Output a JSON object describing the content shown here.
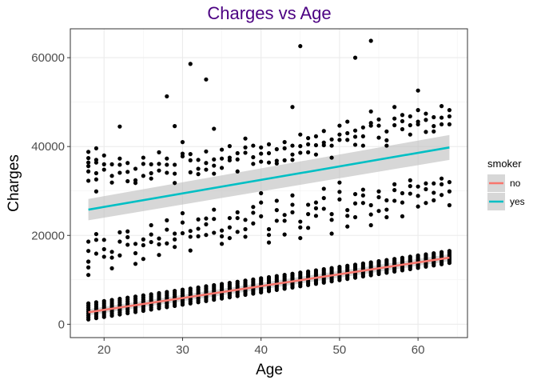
{
  "chart_data": {
    "type": "scatter",
    "title": "Charges vs Age",
    "xlabel": "Age",
    "ylabel": "Charges",
    "xlim": [
      15.7,
      66.3
    ],
    "ylim": [
      -3000,
      66500
    ],
    "x_ticks": [
      20,
      30,
      40,
      50,
      60
    ],
    "y_ticks": [
      0,
      20000,
      40000,
      60000
    ],
    "x_tick_labels": [
      "20",
      "30",
      "40",
      "50",
      "60"
    ],
    "y_tick_labels": [
      "0",
      "20000",
      "40000",
      "60000"
    ],
    "grid": true,
    "legend": {
      "title": "smoker",
      "position": "right",
      "entries": [
        {
          "label": "no",
          "color": "#F8766D"
        },
        {
          "label": "yes",
          "color": "#00BFC4"
        }
      ]
    },
    "point_color": "#000000",
    "band_color": "#bdbdbd",
    "fit_lines": [
      {
        "name": "no",
        "color": "#F8766D",
        "x": [
          18,
          64
        ],
        "y": [
          2700,
          15000
        ],
        "ci_halfwidth": [
          700,
          800
        ]
      },
      {
        "name": "yes",
        "color": "#00BFC4",
        "x": [
          18,
          64
        ],
        "y": [
          25800,
          39800
        ],
        "ci_halfwidth": [
          2400,
          2800
        ]
      }
    ],
    "points": {
      "nonsmoker_low_band": {
        "age_range": [
          18,
          64
        ],
        "charges_at_min_age": [
          1100,
          4700
        ],
        "charges_at_max_age": [
          13800,
          16500
        ]
      },
      "outliers_high": [
        [
          45,
          62600
        ],
        [
          52,
          60000
        ],
        [
          54,
          63800
        ],
        [
          31,
          58600
        ],
        [
          33,
          55100
        ],
        [
          28,
          51300
        ],
        [
          60,
          52600
        ],
        [
          44,
          48900
        ],
        [
          29,
          44600
        ],
        [
          22,
          44500
        ],
        [
          34,
          44000
        ]
      ],
      "smoker_upper_band": [
        [
          18,
          38800
        ],
        [
          18,
          36400
        ],
        [
          19,
          39600
        ],
        [
          19,
          34000
        ],
        [
          20,
          38000
        ],
        [
          21,
          36000
        ],
        [
          22,
          37300
        ],
        [
          23,
          36300
        ],
        [
          24,
          35000
        ],
        [
          25,
          37500
        ],
        [
          26,
          36000
        ],
        [
          27,
          38700
        ],
        [
          28,
          37300
        ],
        [
          29,
          35900
        ],
        [
          30,
          41000
        ],
        [
          31,
          38300
        ],
        [
          32,
          37000
        ],
        [
          33,
          38900
        ],
        [
          34,
          37100
        ],
        [
          35,
          39300
        ],
        [
          36,
          40100
        ],
        [
          37,
          38500
        ],
        [
          38,
          41800
        ],
        [
          39,
          40200
        ],
        [
          40,
          39800
        ],
        [
          41,
          40500
        ],
        [
          42,
          39400
        ],
        [
          43,
          41000
        ],
        [
          44,
          40200
        ],
        [
          45,
          42700
        ],
        [
          46,
          41900
        ],
        [
          47,
          42300
        ],
        [
          48,
          43500
        ],
        [
          49,
          41600
        ],
        [
          50,
          44700
        ],
        [
          51,
          45600
        ],
        [
          52,
          43600
        ],
        [
          53,
          44300
        ],
        [
          54,
          47900
        ],
        [
          55,
          46100
        ],
        [
          56,
          43400
        ],
        [
          57,
          48900
        ],
        [
          58,
          47100
        ],
        [
          59,
          46800
        ],
        [
          60,
          48200
        ],
        [
          61,
          47400
        ],
        [
          62,
          46600
        ],
        [
          63,
          49100
        ],
        [
          64,
          48200
        ]
      ],
      "smoker_mid_band": [
        [
          18,
          12800
        ],
        [
          18,
          16500
        ],
        [
          19,
          19000
        ],
        [
          20,
          16900
        ],
        [
          21,
          15000
        ],
        [
          22,
          18600
        ],
        [
          23,
          19600
        ],
        [
          24,
          16000
        ],
        [
          25,
          17800
        ],
        [
          26,
          20200
        ],
        [
          27,
          18000
        ],
        [
          28,
          21300
        ],
        [
          29,
          19100
        ],
        [
          30,
          22900
        ],
        [
          31,
          19700
        ],
        [
          32,
          21500
        ],
        [
          33,
          22500
        ],
        [
          34,
          23700
        ],
        [
          35,
          19800
        ],
        [
          36,
          21800
        ],
        [
          37,
          23900
        ],
        [
          38,
          21400
        ],
        [
          39,
          25100
        ],
        [
          40,
          27400
        ],
        [
          41,
          20100
        ],
        [
          42,
          25700
        ],
        [
          43,
          23300
        ],
        [
          44,
          26900
        ],
        [
          45,
          21800
        ],
        [
          46,
          24800
        ],
        [
          47,
          26100
        ],
        [
          48,
          28400
        ],
        [
          49,
          23500
        ],
        [
          50,
          29800
        ],
        [
          51,
          24400
        ],
        [
          52,
          27200
        ],
        [
          53,
          29000
        ],
        [
          54,
          24700
        ],
        [
          55,
          28600
        ],
        [
          56,
          25800
        ],
        [
          57,
          30200
        ],
        [
          58,
          27400
        ],
        [
          59,
          31100
        ],
        [
          60,
          28900
        ],
        [
          61,
          30400
        ],
        [
          62,
          29600
        ],
        [
          63,
          31500
        ],
        [
          64,
          29900
        ]
      ]
    }
  }
}
